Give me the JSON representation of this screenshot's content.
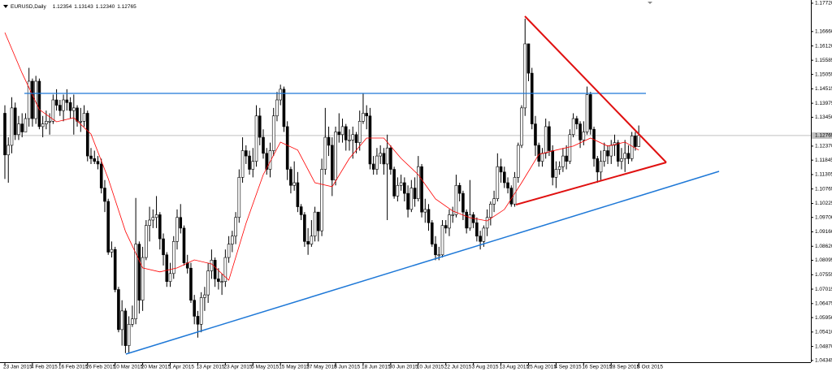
{
  "chart_data": {
    "type": "candlestick",
    "title": "EURUSD,Daily",
    "header_values": [
      1.12354,
      1.13143,
      {
        "value": 1.1234,
        "label": "1.12340"
      },
      1.12765
    ],
    "current_price": 1.12765,
    "ylim": [
      1.0428,
      1.1784
    ],
    "yticks": [
      {
        "value": 1.1772,
        "label": "1.17720"
      },
      {
        "value": 1.1666,
        "label": "1.16660"
      },
      {
        "value": 1.1612,
        "label": "1.16120"
      },
      1.15585,
      1.15055,
      1.14515,
      1.13975,
      {
        "value": 1.1345,
        "label": "1.13450"
      },
      {
        "value": 1.1237,
        "label": "1.12370"
      },
      1.11845,
      1.11305,
      1.10765,
      1.10225,
      {
        "value": 1.097,
        "label": "1.09700"
      },
      {
        "value": 1.0916,
        "label": "1.09160"
      },
      {
        "value": 1.0862,
        "label": "1.08620"
      },
      1.08095,
      1.07555,
      1.07015,
      1.06475,
      {
        "value": 1.0595,
        "label": "1.05950"
      },
      {
        "value": 1.0541,
        "label": "1.05410"
      },
      {
        "value": 1.0487,
        "label": "1.04870"
      },
      1.04345
    ],
    "categories": [
      "23 Jan 2015",
      null,
      null,
      null,
      null,
      null,
      null,
      null,
      "4 Feb 2015",
      null,
      null,
      null,
      null,
      null,
      null,
      null,
      "16 Feb 2015",
      null,
      null,
      null,
      null,
      null,
      null,
      null,
      "26 Feb 2015",
      null,
      null,
      null,
      null,
      null,
      null,
      null,
      "10 Mar 2015",
      null,
      null,
      null,
      null,
      null,
      null,
      null,
      "20 Mar 2015",
      null,
      null,
      null,
      null,
      null,
      null,
      null,
      "1 Apr 2015",
      null,
      null,
      null,
      null,
      null,
      null,
      null,
      "13 Apr 2015",
      null,
      null,
      null,
      null,
      null,
      null,
      null,
      "23 Apr 2015",
      null,
      null,
      null,
      null,
      null,
      null,
      null,
      "5 May 2015",
      null,
      null,
      null,
      null,
      null,
      null,
      null,
      "15 May 2015",
      null,
      null,
      null,
      null,
      null,
      null,
      null,
      "27 May 2015",
      null,
      null,
      null,
      null,
      null,
      null,
      null,
      "8 Jun 2015",
      null,
      null,
      null,
      null,
      null,
      null,
      null,
      "18 Jun 2015",
      null,
      null,
      null,
      null,
      null,
      null,
      null,
      "30 Jun 2015",
      null,
      null,
      null,
      null,
      null,
      null,
      null,
      "10 Jul 2015",
      null,
      null,
      null,
      null,
      null,
      null,
      null,
      "22 Jul 2015",
      null,
      null,
      null,
      null,
      null,
      null,
      null,
      "3 Aug 2015",
      null,
      null,
      null,
      null,
      null,
      null,
      null,
      "13 Aug 2015",
      null,
      null,
      null,
      null,
      null,
      null,
      null,
      "25 Aug 2015",
      null,
      null,
      null,
      null,
      null,
      null,
      null,
      "4 Sep 2015",
      null,
      null,
      null,
      null,
      null,
      null,
      null,
      "16 Sep 2015",
      null,
      null,
      null,
      null,
      null,
      null,
      null,
      "28 Sep 2015",
      null,
      null,
      null,
      null,
      null,
      null,
      null,
      "8 Oct 2015"
    ],
    "open": [
      1.136,
      1.1204,
      1.124,
      1.138,
      1.128,
      1.132,
      1.129,
      1.134,
      1.148,
      1.134,
      1.148,
      1.131,
      1.132,
      1.133,
      1.133,
      1.141,
      1.139,
      1.137,
      1.141,
      1.14,
      1.137,
      1.138,
      1.133,
      1.133,
      1.136,
      1.12,
      1.119,
      1.118,
      1.117,
      1.108,
      1.103,
      1.084,
      1.085,
      1.07,
      1.055,
      1.062,
      1.049,
      1.057,
      1.059,
      1.087,
      1.066,
      1.082,
      1.094,
      1.096,
      1.097,
      1.098,
      1.089,
      1.083,
      1.073,
      1.076,
      1.088,
      1.097,
      1.093,
      1.08,
      1.078,
      1.066,
      1.06,
      1.057,
      1.067,
      1.068,
      1.077,
      1.081,
      1.074,
      1.073,
      1.073,
      1.082,
      1.087,
      1.09,
      1.097,
      1.112,
      1.122,
      1.12,
      1.115,
      1.118,
      1.135,
      1.127,
      1.121,
      1.115,
      1.122,
      1.135,
      1.141,
      1.145,
      1.131,
      1.115,
      1.109,
      1.11,
      1.101,
      1.098,
      1.088,
      1.087,
      1.09,
      1.099,
      1.092,
      1.115,
      1.127,
      1.124,
      1.111,
      1.129,
      1.128,
      1.131,
      1.126,
      1.126,
      1.128,
      1.125,
      1.133,
      1.136,
      1.135,
      1.117,
      1.115,
      1.12,
      1.121,
      1.117,
      1.123,
      1.115,
      1.105,
      1.109,
      1.11,
      1.106,
      1.1,
      1.108,
      1.104,
      1.116,
      1.099,
      1.1,
      1.095,
      1.087,
      1.083,
      1.083,
      1.094,
      1.093,
      1.098,
      1.098,
      1.109,
      1.106,
      1.099,
      1.093,
      1.098,
      1.095,
      1.09,
      1.088,
      1.093,
      1.097,
      1.102,
      1.104,
      1.116,
      1.114,
      1.11,
      1.108,
      1.102,
      1.112,
      1.124,
      1.138,
      1.162,
      1.151,
      1.132,
      1.124,
      1.118,
      1.121,
      1.131,
      1.122,
      1.112,
      1.115,
      1.116,
      1.12,
      1.118,
      1.128,
      1.134,
      1.132,
      1.126,
      1.129,
      1.143,
      1.13,
      1.119,
      1.114,
      1.118,
      1.122,
      1.12,
      1.124,
      1.125,
      1.118,
      1.119,
      1.121,
      1.119,
      1.1275,
      1.12354
    ],
    "high": [
      1.139,
      1.127,
      1.142,
      1.14,
      1.135,
      1.136,
      1.136,
      1.153,
      1.149,
      1.15,
      1.149,
      1.135,
      1.137,
      1.136,
      1.143,
      1.145,
      1.141,
      1.143,
      1.145,
      1.142,
      1.143,
      1.139,
      1.138,
      1.139,
      1.137,
      1.123,
      1.122,
      1.12,
      1.119,
      1.111,
      1.104,
      1.088,
      1.086,
      1.071,
      1.066,
      1.063,
      1.06,
      1.064,
      1.1043,
      1.088,
      1.086,
      1.096,
      1.101,
      1.1,
      1.105,
      1.099,
      1.091,
      1.084,
      1.08,
      1.09,
      1.1,
      1.102,
      1.094,
      1.083,
      1.08,
      1.068,
      1.062,
      1.069,
      1.071,
      1.08,
      1.085,
      1.082,
      1.078,
      1.076,
      1.085,
      1.09,
      1.092,
      1.099,
      1.115,
      1.127,
      1.124,
      1.122,
      1.123,
      1.139,
      1.138,
      1.13,
      1.123,
      1.125,
      1.138,
      1.144,
      1.1467,
      1.146,
      1.133,
      1.116,
      1.118,
      1.114,
      1.102,
      1.099,
      1.093,
      1.096,
      1.101,
      1.099,
      1.119,
      1.138,
      1.131,
      1.127,
      1.131,
      1.136,
      1.134,
      1.132,
      1.13,
      1.131,
      1.129,
      1.137,
      1.1436,
      1.139,
      1.138,
      1.12,
      1.123,
      1.124,
      1.123,
      1.128,
      1.124,
      1.116,
      1.112,
      1.113,
      1.112,
      1.109,
      1.111,
      1.112,
      1.12,
      1.117,
      1.104,
      1.102,
      1.096,
      1.09,
      1.086,
      1.096,
      1.096,
      1.1,
      1.101,
      1.113,
      1.11,
      1.107,
      1.1,
      1.111,
      1.099,
      1.097,
      1.092,
      1.094,
      1.1,
      1.103,
      1.107,
      1.121,
      1.119,
      1.116,
      1.112,
      1.109,
      1.114,
      1.125,
      1.139,
      1.1714,
      1.162,
      1.153,
      1.135,
      1.125,
      1.123,
      1.134,
      1.133,
      1.124,
      1.118,
      1.118,
      1.123,
      1.124,
      1.13,
      1.136,
      1.135,
      1.133,
      1.133,
      1.146,
      1.144,
      1.131,
      1.12,
      1.122,
      1.125,
      1.124,
      1.126,
      1.128,
      1.126,
      1.123,
      1.126,
      1.124,
      1.129,
      1.129,
      1.13143
    ],
    "low": [
      1.1114,
      1.11,
      1.121,
      1.126,
      1.126,
      1.127,
      1.13,
      1.131,
      1.131,
      1.132,
      1.13,
      1.127,
      1.13,
      1.128,
      1.132,
      1.137,
      1.135,
      1.133,
      1.137,
      1.134,
      1.128,
      1.131,
      1.129,
      1.131,
      1.118,
      1.117,
      1.117,
      1.115,
      1.106,
      1.099,
      1.083,
      1.082,
      1.069,
      1.054,
      1.049,
      1.0462,
      1.046,
      1.056,
      1.057,
      1.061,
      1.062,
      1.081,
      1.088,
      1.093,
      1.093,
      1.085,
      1.079,
      1.071,
      1.071,
      1.074,
      1.085,
      1.091,
      1.079,
      1.076,
      1.065,
      1.057,
      1.052,
      1.054,
      1.062,
      1.065,
      1.074,
      1.071,
      1.07,
      1.068,
      1.071,
      1.08,
      1.084,
      1.087,
      1.095,
      1.11,
      1.117,
      1.113,
      1.112,
      1.116,
      1.124,
      1.119,
      1.113,
      1.112,
      1.12,
      1.133,
      1.139,
      1.129,
      1.111,
      1.106,
      1.107,
      1.099,
      1.096,
      1.086,
      1.083,
      1.086,
      1.088,
      1.088,
      1.09,
      1.113,
      1.12,
      1.105,
      1.109,
      1.125,
      1.125,
      1.122,
      1.122,
      1.119,
      1.121,
      1.122,
      1.132,
      1.13,
      1.115,
      1.113,
      1.113,
      1.117,
      1.113,
      1.096,
      1.113,
      1.104,
      1.103,
      1.107,
      1.103,
      1.097,
      1.099,
      1.101,
      1.103,
      1.097,
      1.095,
      1.092,
      1.086,
      1.081,
      1.081,
      1.082,
      1.091,
      1.09,
      1.095,
      1.097,
      1.103,
      1.096,
      1.091,
      1.092,
      1.093,
      1.088,
      1.085,
      1.086,
      1.09,
      1.094,
      1.099,
      1.103,
      1.11,
      1.108,
      1.106,
      1.101,
      1.101,
      1.11,
      1.123,
      1.135,
      1.148,
      1.13,
      1.12,
      1.116,
      1.116,
      1.119,
      1.12,
      1.109,
      1.108,
      1.113,
      1.114,
      1.115,
      1.117,
      1.127,
      1.13,
      1.123,
      1.124,
      1.128,
      1.128,
      1.116,
      1.11,
      1.111,
      1.116,
      1.117,
      1.117,
      1.12,
      1.116,
      1.115,
      1.114,
      1.117,
      1.118,
      1.122,
      1.1234
    ],
    "close": [
      1.1204,
      1.124,
      1.138,
      1.128,
      1.132,
      1.129,
      1.134,
      1.148,
      1.134,
      1.148,
      1.131,
      1.132,
      1.133,
      1.133,
      1.141,
      1.139,
      1.137,
      1.141,
      1.14,
      1.137,
      1.138,
      1.133,
      1.133,
      1.136,
      1.12,
      1.119,
      1.118,
      1.117,
      1.108,
      1.103,
      1.084,
      1.085,
      1.07,
      1.055,
      1.062,
      1.049,
      1.057,
      1.059,
      1.087,
      1.066,
      1.082,
      1.094,
      1.096,
      1.097,
      1.098,
      1.089,
      1.083,
      1.073,
      1.076,
      1.088,
      1.097,
      1.093,
      1.08,
      1.078,
      1.066,
      1.06,
      1.057,
      1.067,
      1.068,
      1.077,
      1.081,
      1.074,
      1.073,
      1.073,
      1.082,
      1.087,
      1.09,
      1.097,
      1.112,
      1.122,
      1.12,
      1.115,
      1.118,
      1.135,
      1.127,
      1.121,
      1.115,
      1.122,
      1.135,
      1.141,
      1.145,
      1.131,
      1.115,
      1.109,
      1.11,
      1.101,
      1.098,
      1.088,
      1.087,
      1.09,
      1.099,
      1.092,
      1.115,
      1.127,
      1.124,
      1.111,
      1.129,
      1.128,
      1.131,
      1.126,
      1.126,
      1.128,
      1.125,
      1.133,
      1.136,
      1.135,
      1.117,
      1.115,
      1.12,
      1.121,
      1.117,
      1.123,
      1.115,
      1.105,
      1.109,
      1.11,
      1.106,
      1.1,
      1.108,
      1.104,
      1.116,
      1.099,
      1.1,
      1.095,
      1.087,
      1.083,
      1.083,
      1.094,
      1.093,
      1.098,
      1.098,
      1.109,
      1.106,
      1.099,
      1.093,
      1.098,
      1.095,
      1.09,
      1.088,
      1.093,
      1.097,
      1.102,
      1.104,
      1.116,
      1.114,
      1.11,
      1.108,
      1.102,
      1.112,
      1.124,
      1.138,
      1.162,
      1.151,
      1.132,
      1.124,
      1.118,
      1.121,
      1.131,
      1.122,
      1.112,
      1.115,
      1.116,
      1.12,
      1.118,
      1.128,
      1.134,
      1.132,
      1.126,
      1.129,
      1.143,
      1.13,
      1.119,
      1.114,
      1.118,
      1.122,
      1.12,
      1.124,
      1.125,
      1.118,
      1.119,
      1.121,
      1.119,
      1.1275,
      1.1235,
      1.12765
    ],
    "bull_color": "#ffffff",
    "bear_color": "#000000",
    "ma": {
      "color": "#ff0000",
      "x": [
        0,
        5,
        10,
        15,
        20,
        25,
        30,
        35,
        40,
        45,
        50,
        55,
        60,
        65,
        70,
        75,
        80,
        85,
        90,
        95,
        100,
        105,
        110,
        115,
        120,
        125,
        130,
        135,
        140,
        145,
        150,
        155,
        160,
        165,
        170,
        175,
        180,
        184
      ],
      "values": [
        1.1662,
        1.151,
        1.1374,
        1.1328,
        1.1343,
        1.1282,
        1.1115,
        1.0918,
        1.0781,
        1.0766,
        1.0781,
        1.0811,
        1.0796,
        1.0735,
        1.0948,
        1.113,
        1.1252,
        1.1222,
        1.11,
        1.1085,
        1.1191,
        1.1267,
        1.1267,
        1.1191,
        1.113,
        1.1039,
        1.0994,
        1.0969,
        1.0957,
        1.1,
        1.11,
        1.1206,
        1.1222,
        1.1237,
        1.1267,
        1.1237,
        1.1252,
        1.1222
      ]
    }
  }
}
